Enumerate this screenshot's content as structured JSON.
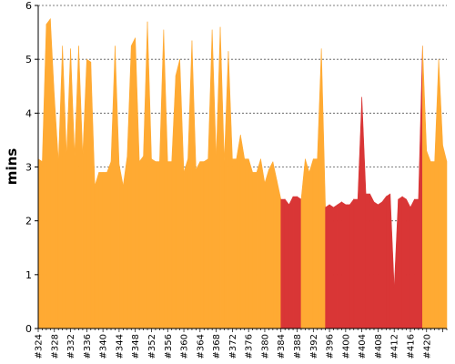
{
  "chart_data": {
    "type": "area",
    "ylabel": "mins",
    "xlabel": "",
    "title": "",
    "ylim": [
      0,
      6
    ],
    "yticks": [
      "0",
      "1",
      "2",
      "3",
      "4",
      "5",
      "6"
    ],
    "grid": true,
    "x_start": 324,
    "x_step": 1,
    "x_tick_labels": [
      "#324",
      "#328",
      "#332",
      "#336",
      "#340",
      "#344",
      "#348",
      "#352",
      "#356",
      "#360",
      "#364",
      "#368",
      "#372",
      "#376",
      "#380",
      "#384",
      "#388",
      "#392",
      "#396",
      "#400",
      "#404",
      "#408",
      "#412",
      "#416",
      "#420"
    ],
    "colors": {
      "stable": "#ffaa33",
      "failed": "#d93636"
    },
    "values": [
      3.15,
      3.1,
      5.65,
      5.75,
      4.3,
      3.1,
      5.25,
      3.2,
      5.2,
      3.2,
      5.25,
      3.2,
      5.0,
      4.95,
      2.65,
      2.9,
      2.9,
      2.9,
      3.1,
      5.25,
      3.05,
      2.65,
      3.2,
      5.25,
      5.4,
      3.1,
      3.2,
      5.7,
      3.15,
      3.1,
      3.1,
      5.55,
      3.1,
      3.1,
      4.7,
      5.0,
      2.9,
      3.15,
      5.35,
      2.95,
      3.1,
      3.1,
      3.15,
      5.55,
      3.15,
      5.6,
      3.1,
      5.15,
      3.15,
      3.15,
      3.6,
      3.15,
      3.15,
      2.9,
      2.9,
      3.15,
      2.7,
      2.95,
      3.1,
      2.75,
      2.4,
      2.4,
      2.3,
      2.45,
      2.45,
      2.4,
      3.15,
      2.9,
      3.15,
      3.15,
      5.2,
      2.25,
      2.3,
      2.25,
      2.3,
      2.35,
      2.3,
      2.3,
      2.4,
      2.4,
      4.3,
      2.5,
      2.5,
      2.35,
      2.3,
      2.35,
      2.45,
      2.5,
      0.75,
      2.4,
      2.45,
      2.4,
      2.25,
      2.4,
      2.4,
      5.25,
      3.3,
      3.1,
      3.1,
      5.0,
      3.4,
      3.1
    ],
    "failed_ranges": [
      [
        384,
        389
      ],
      [
        395,
        419
      ]
    ]
  }
}
